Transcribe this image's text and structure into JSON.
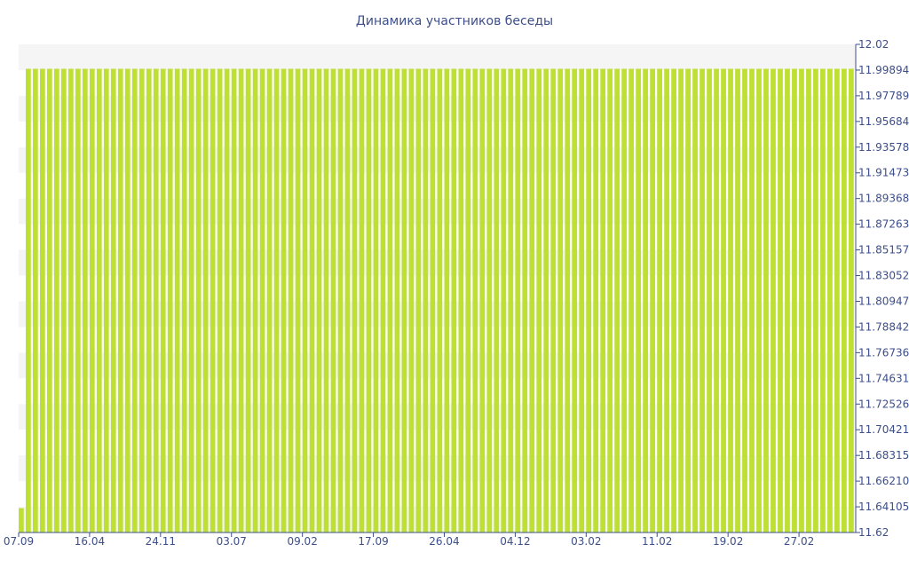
{
  "colors": {
    "bar": "#bde032",
    "text": "#3d4f8a",
    "band": "#f5f5f5",
    "axis": "#3d4f8a"
  },
  "chart_data": {
    "type": "bar",
    "title": "Динамика участников беседы",
    "xlabel": "",
    "ylabel": "",
    "ylim": [
      11.62,
      12.02
    ],
    "y_axis_side": "right",
    "grid": "alternating horizontal bands",
    "legend": "none",
    "yticks": [
      "11.62",
      "11.64105",
      "11.66210",
      "11.68315",
      "11.70421",
      "11.72526",
      "11.74631",
      "11.76736",
      "11.78842",
      "11.80947",
      "11.83052",
      "11.85157",
      "11.87263",
      "11.89368",
      "11.91473",
      "11.93578",
      "11.95684",
      "11.97789",
      "11.99894",
      "12.02"
    ],
    "xticks": [
      "07.09",
      "16.04",
      "24.11",
      "03.07",
      "09.02",
      "17.09",
      "26.04",
      "04.12",
      "03.02",
      "11.02",
      "19.02",
      "27.02"
    ],
    "xtick_bar_index": [
      0,
      10,
      20,
      30,
      40,
      50,
      60,
      70,
      80,
      90,
      100,
      110
    ],
    "values": [
      11.64,
      12,
      12,
      12,
      12,
      12,
      12,
      12,
      12,
      12,
      12,
      12,
      12,
      12,
      12,
      12,
      12,
      12,
      12,
      12,
      12,
      12,
      12,
      12,
      12,
      12,
      12,
      12,
      12,
      12,
      12,
      12,
      12,
      12,
      12,
      12,
      12,
      12,
      12,
      12,
      12,
      12,
      12,
      12,
      12,
      12,
      12,
      12,
      12,
      12,
      12,
      12,
      12,
      12,
      12,
      12,
      12,
      12,
      12,
      12,
      12,
      12,
      12,
      12,
      12,
      12,
      12,
      12,
      12,
      12,
      12,
      12,
      12,
      12,
      12,
      12,
      12,
      12,
      12,
      12,
      12,
      12,
      12,
      12,
      12,
      12,
      12,
      12,
      12,
      12,
      12,
      12,
      12,
      12,
      12,
      12,
      12,
      12,
      12,
      12,
      12,
      12,
      12,
      12,
      12,
      12,
      12,
      12,
      12,
      12,
      12,
      12,
      12,
      12,
      12,
      12,
      12,
      12
    ]
  }
}
